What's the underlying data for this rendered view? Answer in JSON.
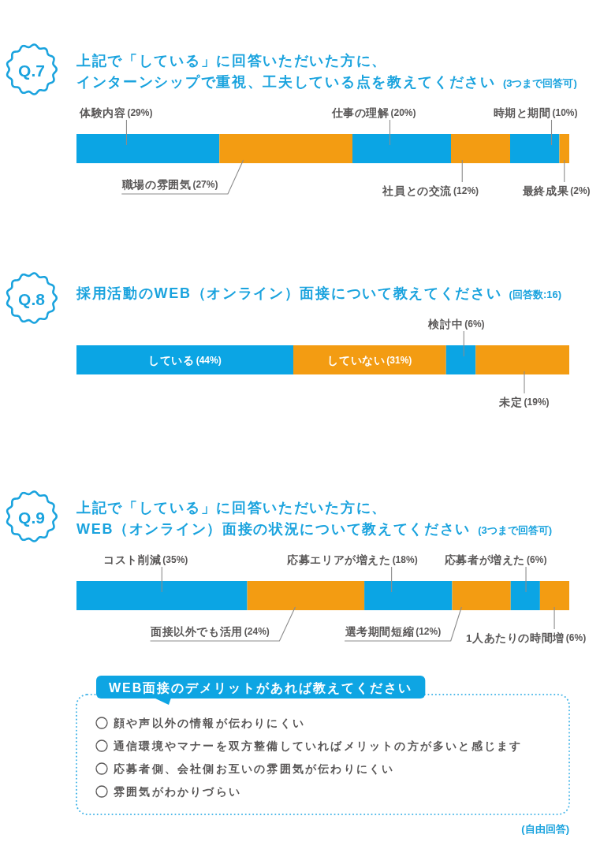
{
  "chart_data": [
    {
      "type": "bar",
      "orientation": "horizontal",
      "stacked": true,
      "title": "上記で「している」に回答いただいた方に、インターンシップで重視、工夫している点を教えてください",
      "subtitle": "(3つまで回答可)",
      "annotations": [
        "Q.7"
      ],
      "categories": [
        null
      ],
      "series": [
        {
          "name": "体験内容",
          "color": "#0ba5e4",
          "values": [
            29
          ],
          "value_labels": [
            "(29%)"
          ]
        },
        {
          "name": "職場の雰囲気",
          "color": "#f39c12",
          "values": [
            27
          ],
          "value_labels": [
            "(27%)"
          ]
        },
        {
          "name": "仕事の理解",
          "color": "#0ba5e4",
          "values": [
            20
          ],
          "value_labels": [
            "(20%)"
          ]
        },
        {
          "name": "社員との交流",
          "color": "#f39c12",
          "values": [
            12
          ],
          "value_labels": [
            "(12%)"
          ]
        },
        {
          "name": "時期と期間",
          "color": "#0ba5e4",
          "values": [
            10
          ],
          "value_labels": [
            "(10%)"
          ]
        },
        {
          "name": "最終成果",
          "color": "#f39c12",
          "values": [
            2
          ],
          "value_labels": [
            "(2%)"
          ]
        }
      ]
    },
    {
      "type": "bar",
      "orientation": "horizontal",
      "stacked": true,
      "title": "採用活動のWEB（オンライン）面接について教えてください",
      "subtitle": "(回答数:16)",
      "annotations": [
        "Q.8"
      ],
      "categories": [
        null
      ],
      "series": [
        {
          "name": "している",
          "color": "#0ba5e4",
          "values": [
            44
          ],
          "value_labels": [
            "(44%)"
          ]
        },
        {
          "name": "していない",
          "color": "#f39c12",
          "values": [
            31
          ],
          "value_labels": [
            "(31%)"
          ]
        },
        {
          "name": "検討中",
          "color": "#0ba5e4",
          "values": [
            6
          ],
          "value_labels": [
            "(6%)"
          ]
        },
        {
          "name": "未定",
          "color": "#f39c12",
          "values": [
            19
          ],
          "value_labels": [
            "(19%)"
          ]
        }
      ]
    },
    {
      "type": "bar",
      "orientation": "horizontal",
      "stacked": true,
      "title": "上記で「している」に回答いただいた方に、WEB（オンライン）面接の状況について教えてください",
      "subtitle": "(3つまで回答可)",
      "annotations": [
        "Q.9"
      ],
      "categories": [
        null
      ],
      "series": [
        {
          "name": "コスト削減",
          "color": "#0ba5e4",
          "values": [
            35
          ],
          "value_labels": [
            "(35%)"
          ]
        },
        {
          "name": "面接以外でも活用",
          "color": "#f39c12",
          "values": [
            24
          ],
          "value_labels": [
            "(24%)"
          ]
        },
        {
          "name": "応募エリアが増えた",
          "color": "#0ba5e4",
          "values": [
            18
          ],
          "value_labels": [
            "(18%)"
          ]
        },
        {
          "name": "選考期間短縮",
          "color": "#f39c12",
          "values": [
            12
          ],
          "value_labels": [
            "(12%)"
          ]
        },
        {
          "name": "応募者が増えた",
          "color": "#0ba5e4",
          "values": [
            6
          ],
          "value_labels": [
            "(6%)"
          ]
        },
        {
          "name": "1人あたりの時間増",
          "color": "#f39c12",
          "values": [
            6
          ],
          "value_labels": [
            "(6%)"
          ]
        }
      ]
    },
    {
      "type": "other",
      "title": "WEB面接のデメリットがあれば教えてください",
      "subtitle": "(自由回答)",
      "annotations": [
        "顔や声以外の情報が伝わりにくい",
        "通信環境やマナーを双方整備していればメリットの方が多いと感じます",
        "応募者側、会社側お互いの雰囲気が伝わりにくい",
        "雰囲気がわかりづらい"
      ]
    }
  ]
}
